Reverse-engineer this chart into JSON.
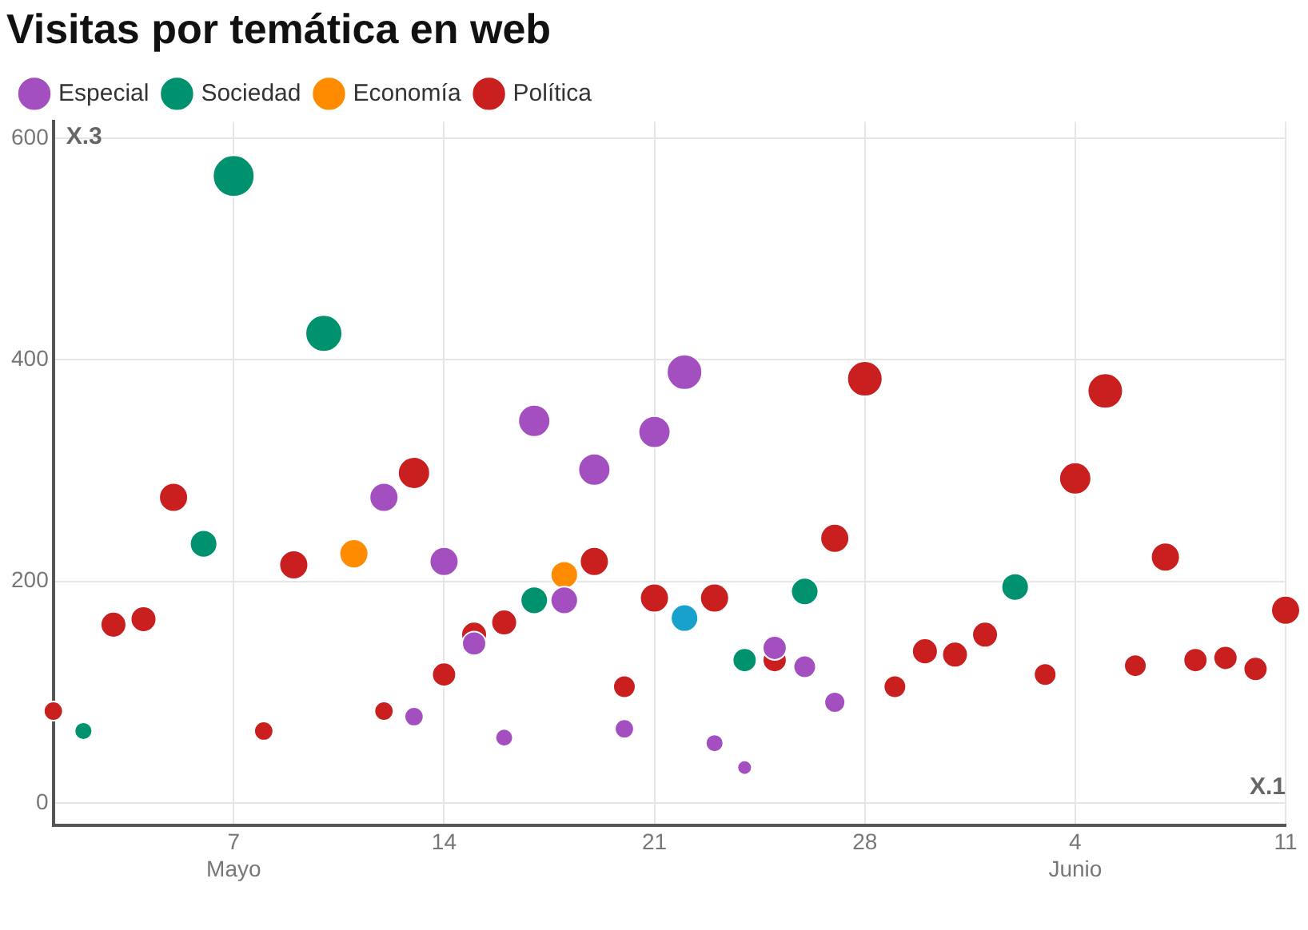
{
  "chart_data": {
    "type": "bubble",
    "title": "Visitas por temática en web",
    "xlabel": "X.1",
    "ylabel": "X.3",
    "legend": "top left",
    "grid": true,
    "xlim": [
      "--05-01",
      "--06-11"
    ],
    "ylim": [
      -20,
      615
    ],
    "yticks": [
      0,
      200,
      400,
      600
    ],
    "xticks": [
      {
        "value": "--05-07",
        "label": "7\nMayo"
      },
      {
        "value": "--05-14",
        "label": "14"
      },
      {
        "value": "--05-21",
        "label": "21"
      },
      {
        "value": "--05-28",
        "label": "28"
      },
      {
        "value": "--06-04",
        "label": "4\nJunio"
      },
      {
        "value": "--06-11",
        "label": "11"
      }
    ],
    "series": [
      {
        "name": "Especial",
        "color": "#a44fc0",
        "x": [
          "--05-12",
          "--05-13",
          "--05-14",
          "--05-15",
          "--05-16",
          "--05-17",
          "--05-18",
          "--05-19",
          "--05-20",
          "--05-21",
          "--05-22",
          "--05-23",
          "--05-24",
          "--05-25",
          "--05-26",
          "--05-27"
        ],
        "values": [
          276,
          78,
          218,
          144,
          59,
          345,
          183,
          301,
          67,
          335,
          389,
          54,
          32,
          140,
          123,
          91
        ],
        "sizes": [
          0.48,
          0.21,
          0.48,
          0.33,
          0.18,
          0.59,
          0.43,
          0.59,
          0.21,
          0.59,
          0.72,
          0.18,
          0.12,
          0.33,
          0.29,
          0.25
        ]
      },
      {
        "name": "Sociedad",
        "color": "#00916e",
        "x": [
          "--05-02",
          "--05-06",
          "--05-07",
          "--05-10",
          "--05-17",
          "--05-24",
          "--05-26",
          "--06-02"
        ],
        "values": [
          65,
          234,
          566,
          424,
          183,
          129,
          191,
          195
        ],
        "sizes": [
          0.18,
          0.43,
          1,
          0.78,
          0.43,
          0.33,
          0.43,
          0.43
        ]
      },
      {
        "name": "Economía",
        "color": "#ff8c00",
        "x": [
          "--05-11",
          "--05-18"
        ],
        "values": [
          225,
          206
        ],
        "sizes": [
          0.48,
          0.43
        ]
      },
      {
        "name": "Política",
        "color": "#c91f1f",
        "x": [
          "--05-01",
          "--05-03",
          "--05-04",
          "--05-05",
          "--05-08",
          "--05-09",
          "--05-12",
          "--05-13",
          "--05-14",
          "--05-15",
          "--05-16",
          "--05-19",
          "--05-20",
          "--05-21",
          "--05-23",
          "--05-25",
          "--05-27",
          "--05-28",
          "--05-29",
          "--05-30",
          "--05-31",
          "--06-01",
          "--06-03",
          "--06-04",
          "--06-05",
          "--06-06",
          "--06-07",
          "--06-08",
          "--06-09",
          "--06-10",
          "--06-11"
        ],
        "values": [
          83,
          161,
          166,
          276,
          65,
          215,
          83,
          298,
          116,
          152,
          163,
          218,
          105,
          185,
          185,
          129,
          239,
          383,
          105,
          137,
          134,
          152,
          116,
          293,
          372,
          124,
          222,
          129,
          131,
          121,
          174
        ],
        "sizes": [
          0.21,
          0.38,
          0.38,
          0.48,
          0.21,
          0.48,
          0.21,
          0.59,
          0.33,
          0.38,
          0.38,
          0.48,
          0.29,
          0.48,
          0.48,
          0.33,
          0.48,
          0.72,
          0.29,
          0.38,
          0.38,
          0.38,
          0.29,
          0.59,
          0.72,
          0.29,
          0.48,
          0.33,
          0.33,
          0.33,
          0.48
        ]
      },
      {
        "color": "#18a1cd",
        "x": [
          "--05-22"
        ],
        "values": [
          167
        ],
        "sizes": [
          0.43
        ]
      }
    ]
  }
}
